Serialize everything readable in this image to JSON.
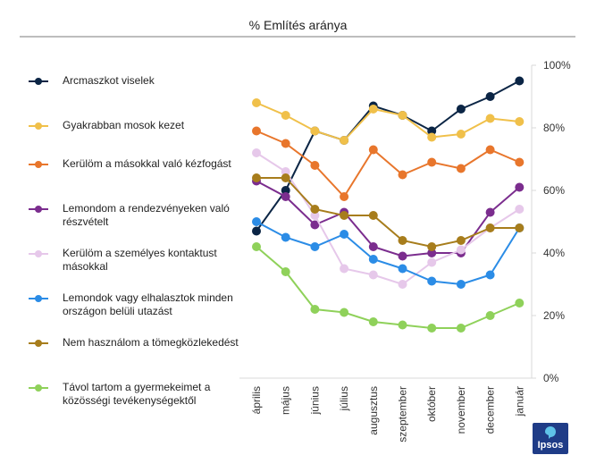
{
  "chart_data": {
    "type": "line",
    "title": "% Említés aránya",
    "categories": [
      "április",
      "május",
      "június",
      "július",
      "augusztus",
      "szeptember",
      "október",
      "november",
      "december",
      "január"
    ],
    "ylim": [
      0,
      100
    ],
    "yticks": [
      "0%",
      "20%",
      "40%",
      "60%",
      "80%",
      "100%"
    ],
    "ytick_values": [
      0,
      20,
      40,
      60,
      80,
      100
    ],
    "grid": false,
    "legend_position": "left",
    "series": [
      {
        "name": "Arcmaszkot viselek",
        "color": "#0b2545",
        "values": [
          47,
          60,
          79,
          76,
          87,
          84,
          79,
          86,
          90,
          95
        ]
      },
      {
        "name": "Gyakrabban mosok kezet",
        "color": "#f0c04a",
        "values": [
          88,
          84,
          79,
          76,
          86,
          84,
          77,
          78,
          83,
          82
        ]
      },
      {
        "name": "Kerülöm a másokkal való kézfogást",
        "color": "#e8762c",
        "values": [
          79,
          75,
          68,
          58,
          73,
          65,
          69,
          67,
          73,
          69
        ]
      },
      {
        "name": "Lemondom a rendezvényeken való részvételt",
        "color": "#7b2d8e",
        "values": [
          63,
          58,
          49,
          53,
          42,
          39,
          40,
          40,
          53,
          61
        ]
      },
      {
        "name": "Kerülöm a személyes kontaktust másokkal",
        "color": "#e6c8ea",
        "values": [
          72,
          66,
          52,
          35,
          33,
          30,
          37,
          41,
          48,
          54
        ]
      },
      {
        "name": "Lemondok vagy elhalasztok minden országon belüli utazást",
        "color": "#2b8ce6",
        "values": [
          50,
          45,
          42,
          46,
          38,
          35,
          31,
          30,
          33,
          48
        ]
      },
      {
        "name": "Nem használom a tömegközlekedést",
        "color": "#a77d1c",
        "values": [
          64,
          64,
          54,
          52,
          52,
          44,
          42,
          44,
          48,
          48
        ]
      },
      {
        "name": "Távol tartom a gyermekeimet a közösségi tevékenységektől",
        "color": "#8fd15a",
        "values": [
          42,
          34,
          22,
          21,
          18,
          17,
          16,
          16,
          20,
          24
        ]
      }
    ]
  },
  "legend": {
    "items": [
      {
        "label": "Arcmaszkot viselek",
        "color": "#0b2545"
      },
      {
        "label": "Gyakrabban mosok kezet",
        "color": "#f0c04a"
      },
      {
        "label": "Kerülöm a másokkal való kézfogást",
        "color": "#e8762c"
      },
      {
        "label": "Lemondom a rendezvényeken való részvételt",
        "color": "#7b2d8e"
      },
      {
        "label": "Kerülöm a személyes kontaktust másokkal",
        "color": "#e6c8ea"
      },
      {
        "label": "Lemondok vagy elhalasztok minden országon belüli utazást",
        "color": "#2b8ce6"
      },
      {
        "label": "Nem használom a tömegközlekedést",
        "color": "#a77d1c"
      },
      {
        "label": "Távol tartom a gyermekeimet a közösségi tevékenységektől",
        "color": "#8fd15a"
      }
    ]
  },
  "logo": {
    "text": "Ipsos"
  }
}
